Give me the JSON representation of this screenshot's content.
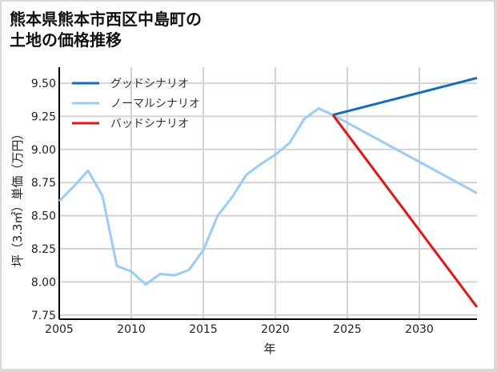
{
  "title_line1": "熊本県熊本市西区中島町の",
  "title_line2": "土地の価格推移",
  "chart_data": {
    "type": "line",
    "title": "熊本県熊本市西区中島町の土地の価格推移",
    "xlabel": "年",
    "ylabel": "坪（3.3㎡）単価（万円）",
    "xlim": [
      2005,
      2034
    ],
    "ylim": [
      7.72,
      9.6
    ],
    "xticks": [
      2005,
      2010,
      2015,
      2020,
      2025,
      2030
    ],
    "yticks": [
      7.75,
      8.0,
      8.25,
      8.5,
      8.75,
      9.0,
      9.25,
      9.5
    ],
    "ytick_labels": [
      "7.75",
      "8.00",
      "8.25",
      "8.50",
      "8.75",
      "9.00",
      "9.25",
      "9.50"
    ],
    "grid": true,
    "legend_position": "upper left",
    "series": [
      {
        "name": "グッドシナリオ",
        "color": "#0f6fbf",
        "x": [
          2024,
          2034
        ],
        "values": [
          9.26,
          9.54
        ]
      },
      {
        "name": "ノーマルシナリオ",
        "color": "#99ccf8",
        "x": [
          2005,
          2006,
          2007,
          2008,
          2009,
          2010,
          2011,
          2012,
          2013,
          2014,
          2015,
          2016,
          2017,
          2018,
          2019,
          2020,
          2021,
          2022,
          2023,
          2024,
          2034
        ],
        "values": [
          8.61,
          8.72,
          8.84,
          8.65,
          8.12,
          8.08,
          7.98,
          8.06,
          8.05,
          8.09,
          8.24,
          8.5,
          8.64,
          8.81,
          8.89,
          8.96,
          9.05,
          9.23,
          9.31,
          9.26,
          8.67
        ]
      },
      {
        "name": "バッドシナリオ",
        "color": "#ee1111",
        "x": [
          2024,
          2034
        ],
        "values": [
          9.26,
          7.81
        ]
      }
    ]
  }
}
